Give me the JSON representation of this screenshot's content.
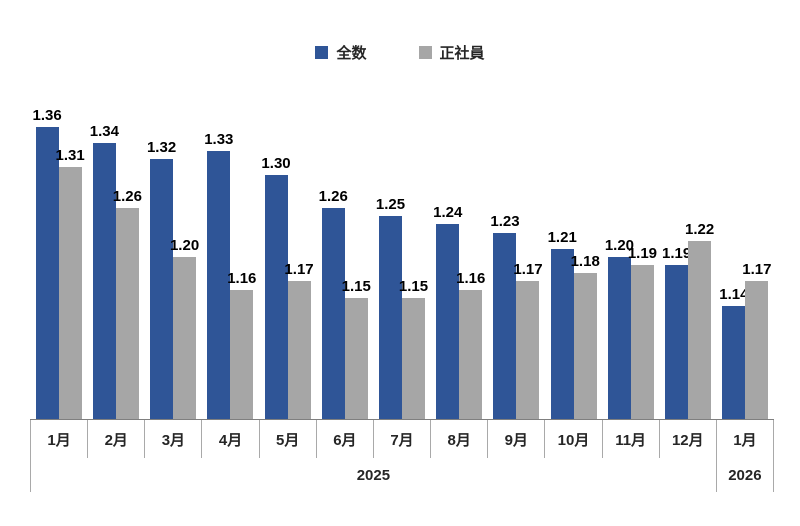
{
  "chart_data": {
    "type": "bar",
    "title": "",
    "categories": [
      "1月",
      "2月",
      "3月",
      "4月",
      "5月",
      "6月",
      "7月",
      "8月",
      "9月",
      "10月",
      "11月",
      "12月",
      "1月"
    ],
    "year_groups": [
      {
        "label": "2025",
        "span": 12
      },
      {
        "label": "2026",
        "span": 1
      }
    ],
    "series": [
      {
        "name": "全数",
        "color": "#2f5597",
        "values": [
          1.36,
          1.34,
          1.32,
          1.33,
          1.3,
          1.26,
          1.25,
          1.24,
          1.23,
          1.21,
          1.2,
          1.19,
          1.14
        ]
      },
      {
        "name": "正社員",
        "color": "#a6a6a6",
        "values": [
          1.31,
          1.26,
          1.2,
          1.16,
          1.17,
          1.15,
          1.15,
          1.16,
          1.17,
          1.18,
          1.19,
          1.22,
          1.17
        ]
      }
    ],
    "ylim": [
      1.0,
      1.4
    ],
    "grid": false,
    "data_labels": true,
    "legend_position": "top",
    "colors": {
      "axis_line": "#7f7f7f",
      "separator_line": "#a9a9a9",
      "label_text": "#000000"
    }
  }
}
